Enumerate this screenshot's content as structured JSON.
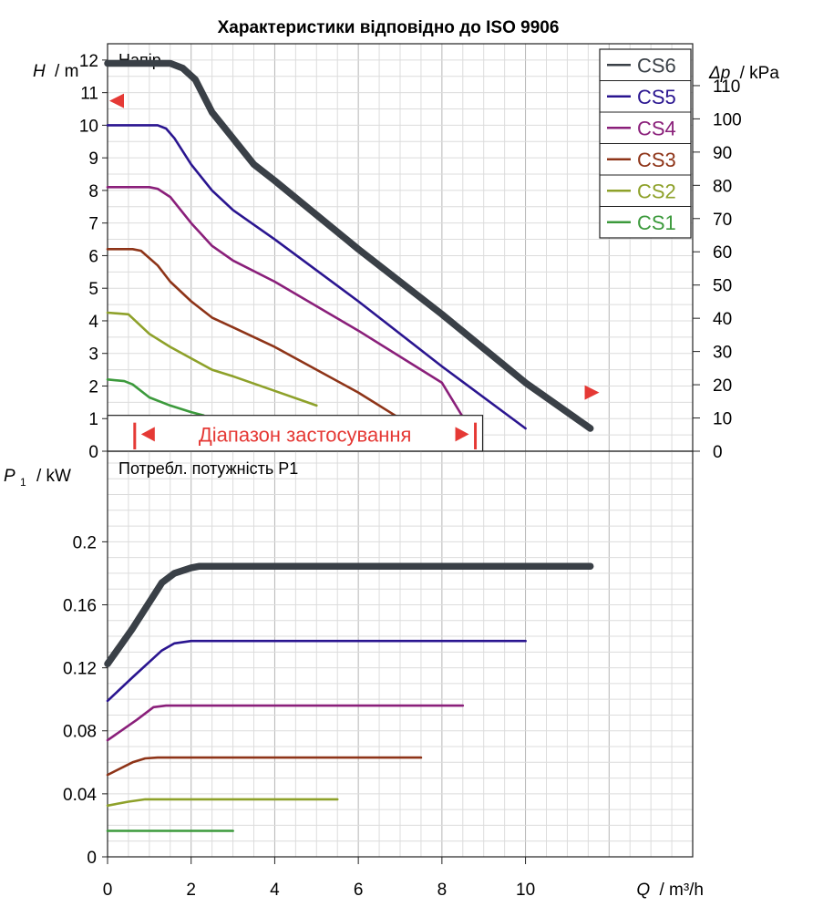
{
  "title": "Характеристики відповідно до ISO 9906",
  "colors": {
    "CS6": "#3a4047",
    "CS5": "#2a1590",
    "CS4": "#8a1f7a",
    "CS3": "#8e3418",
    "CS2": "#8ea12a",
    "CS1": "#3c9a3c",
    "range": "#e53935",
    "grid": "#c8c8c8"
  },
  "chart_data": [
    {
      "type": "line",
      "name": "head",
      "panel_label": "Напір",
      "ylabel_symbol": "H",
      "ylabel_unit": "/ m",
      "y2label_symbol": "Δp",
      "y2label_unit": "/ kPa",
      "xlim": [
        0,
        14
      ],
      "ylim": [
        0,
        12.5
      ],
      "yticks": [
        0,
        1,
        2,
        3,
        4,
        5,
        6,
        7,
        8,
        9,
        10,
        11,
        12
      ],
      "y2lim": [
        0,
        122.6
      ],
      "y2ticks": [
        0,
        10,
        20,
        30,
        40,
        50,
        60,
        70,
        80,
        90,
        100,
        110
      ],
      "grid": true,
      "legend_position": "top-right",
      "legend": [
        "CS6",
        "CS5",
        "CS4",
        "CS3",
        "CS2",
        "CS1"
      ],
      "application_range": {
        "label": "Діапазон застосування",
        "x_min": 0.65,
        "x_max": 8.8
      },
      "series": [
        {
          "name": "CS6",
          "x": [
            0,
            1.5,
            1.8,
            2.1,
            2.5,
            3.0,
            3.5,
            4.0,
            6.0,
            8.0,
            10.0,
            11.55
          ],
          "y": [
            11.9,
            11.9,
            11.75,
            11.4,
            10.4,
            9.6,
            8.8,
            8.3,
            6.2,
            4.2,
            2.1,
            0.7
          ]
        },
        {
          "name": "CS5",
          "x": [
            0,
            1.2,
            1.4,
            1.6,
            2.0,
            2.5,
            3.0,
            4.0,
            6.0,
            8.0,
            10.0
          ],
          "y": [
            10.0,
            10.0,
            9.9,
            9.6,
            8.8,
            8.0,
            7.4,
            6.5,
            4.6,
            2.6,
            0.7
          ]
        },
        {
          "name": "CS4",
          "x": [
            0,
            1.0,
            1.2,
            1.5,
            2.0,
            2.5,
            3.0,
            4.0,
            6.0,
            8.0,
            8.5
          ],
          "y": [
            8.1,
            8.1,
            8.05,
            7.8,
            7.0,
            6.3,
            5.85,
            5.2,
            3.7,
            2.1,
            1.05
          ]
        },
        {
          "name": "CS3",
          "x": [
            0,
            0.6,
            0.8,
            1.2,
            1.5,
            2.0,
            2.5,
            3.0,
            4.0,
            6.0,
            7.0
          ],
          "y": [
            6.2,
            6.2,
            6.15,
            5.7,
            5.2,
            4.6,
            4.1,
            3.8,
            3.2,
            1.8,
            1.0
          ]
        },
        {
          "name": "CS2",
          "x": [
            0,
            0.5,
            1.0,
            1.5,
            2.0,
            2.5,
            3.0,
            4.0,
            5.0
          ],
          "y": [
            4.25,
            4.2,
            3.6,
            3.2,
            2.85,
            2.5,
            2.3,
            1.85,
            1.4
          ]
        },
        {
          "name": "CS1",
          "x": [
            0,
            0.4,
            0.6,
            1.0,
            1.5,
            2.0,
            2.3
          ],
          "y": [
            2.2,
            2.15,
            2.05,
            1.65,
            1.4,
            1.2,
            1.1
          ]
        }
      ]
    },
    {
      "type": "line",
      "name": "power",
      "panel_label": "Потребл. потужність P1",
      "ylabel_symbol": "P",
      "ylabel_subscript": "1",
      "ylabel_unit": "/ kW",
      "xlabel_symbol": "Q",
      "xlabel_unit": "/ m³/h",
      "xlim": [
        0,
        14
      ],
      "xticks": [
        0,
        2,
        4,
        6,
        8,
        10
      ],
      "ylim": [
        0,
        0.2575
      ],
      "yticks": [
        0,
        0.04,
        0.08,
        0.12,
        0.16,
        0.2
      ],
      "grid": true,
      "series": [
        {
          "name": "CS6",
          "x": [
            0,
            0.6,
            1.3,
            1.6,
            2.0,
            2.2,
            11.55
          ],
          "y": [
            0.1225,
            0.145,
            0.174,
            0.18,
            0.1835,
            0.1845,
            0.1845
          ]
        },
        {
          "name": "CS5",
          "x": [
            0,
            0.6,
            1.3,
            1.6,
            2.0,
            10.0
          ],
          "y": [
            0.099,
            0.114,
            0.131,
            0.1355,
            0.137,
            0.137
          ]
        },
        {
          "name": "CS4",
          "x": [
            0,
            0.7,
            1.1,
            1.4,
            8.5
          ],
          "y": [
            0.074,
            0.087,
            0.095,
            0.096,
            0.096
          ]
        },
        {
          "name": "CS3",
          "x": [
            0,
            0.6,
            0.9,
            1.2,
            7.5
          ],
          "y": [
            0.052,
            0.06,
            0.0625,
            0.063,
            0.063
          ]
        },
        {
          "name": "CS2",
          "x": [
            0,
            0.5,
            0.9,
            5.5
          ],
          "y": [
            0.0325,
            0.035,
            0.0365,
            0.0365
          ]
        },
        {
          "name": "CS1",
          "x": [
            0,
            3.0
          ],
          "y": [
            0.0165,
            0.0165
          ]
        }
      ]
    }
  ]
}
